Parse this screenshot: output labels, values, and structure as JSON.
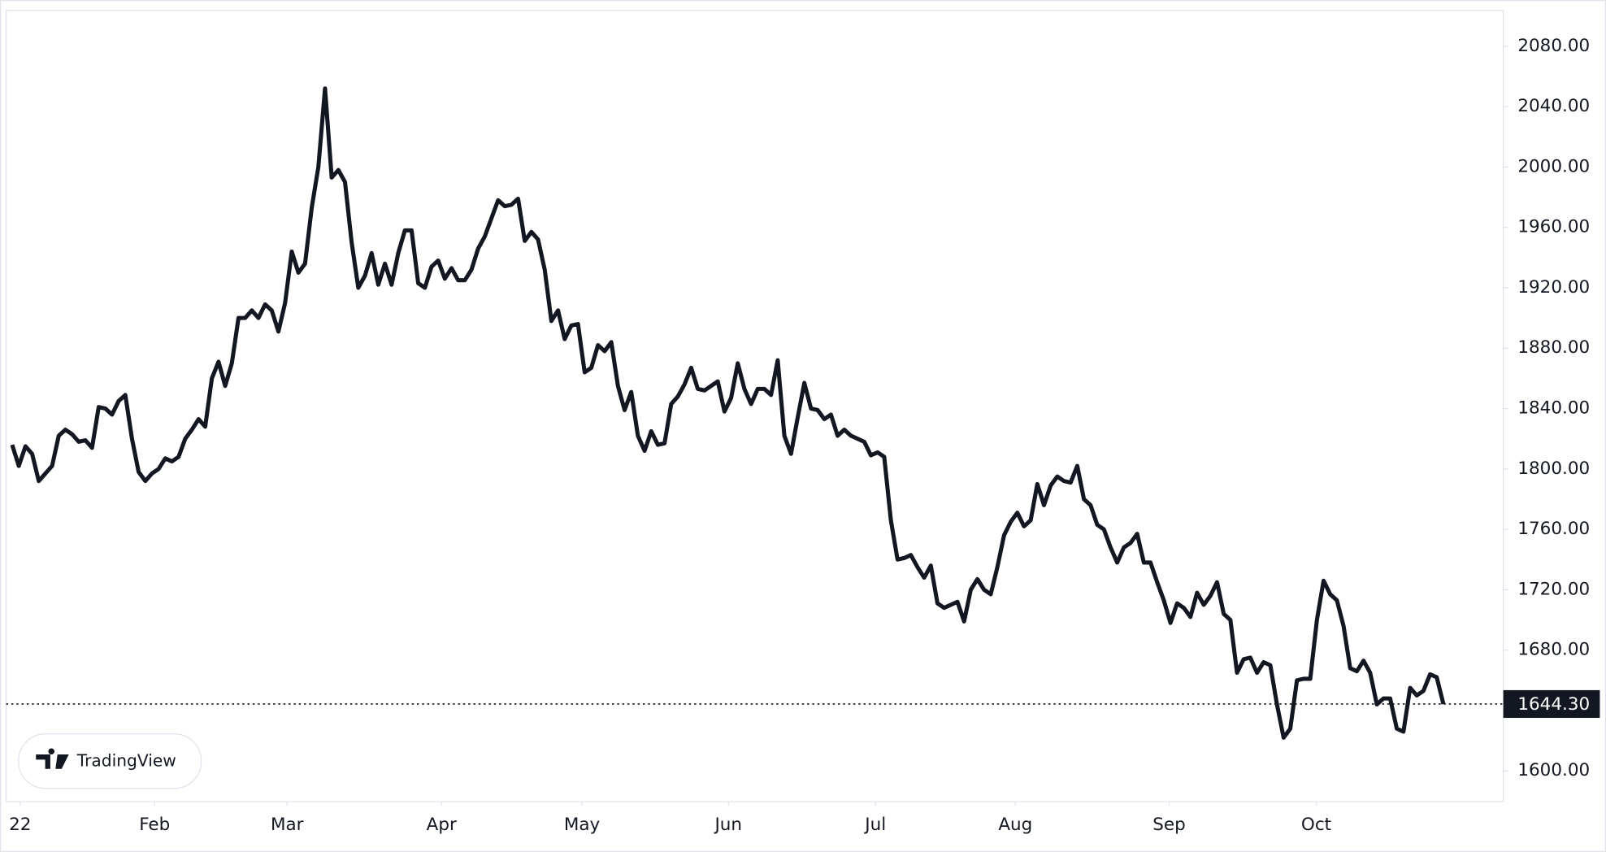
{
  "chart_data": {
    "type": "line",
    "series": [
      {
        "color": "#131722",
        "values": [
          1816,
          1802,
          1815,
          1810,
          1792,
          1797,
          1802,
          1822,
          1826,
          1823,
          1818,
          1819,
          1814,
          1841,
          1840,
          1836,
          1845,
          1849,
          1820,
          1798,
          1792,
          1797,
          1800,
          1807,
          1805,
          1808,
          1820,
          1826,
          1833,
          1828,
          1860,
          1871,
          1855,
          1870,
          1900,
          1900,
          1905,
          1900,
          1909,
          1905,
          1891,
          1910,
          1944,
          1930,
          1936,
          1973,
          2000,
          2052,
          1993,
          1998,
          1990,
          1950,
          1920,
          1928,
          1943,
          1922,
          1936,
          1922,
          1943,
          1958,
          1958,
          1923,
          1920,
          1934,
          1938,
          1926,
          1933,
          1925,
          1925,
          1932,
          1946,
          1954,
          1966,
          1978,
          1974,
          1975,
          1979,
          1951,
          1957,
          1952,
          1932,
          1898,
          1905,
          1886,
          1895,
          1896,
          1864,
          1867,
          1882,
          1878,
          1884,
          1855,
          1839,
          1851,
          1822,
          1812,
          1825,
          1816,
          1817,
          1843,
          1848,
          1856,
          1867,
          1853,
          1852,
          1855,
          1858,
          1838,
          1847,
          1870,
          1853,
          1843,
          1853,
          1853,
          1849,
          1872,
          1822,
          1810,
          1834,
          1857,
          1840,
          1839,
          1833,
          1836,
          1822,
          1826,
          1822,
          1820,
          1818,
          1809,
          1811,
          1808,
          1766,
          1740,
          1741,
          1743,
          1735,
          1728,
          1736,
          1711,
          1708,
          1710,
          1712,
          1699,
          1720,
          1727,
          1720,
          1717,
          1735,
          1756,
          1765,
          1771,
          1762,
          1766,
          1790,
          1776,
          1789,
          1795,
          1792,
          1791,
          1802,
          1780,
          1776,
          1763,
          1760,
          1748,
          1738,
          1748,
          1751,
          1757,
          1738,
          1738,
          1725,
          1713,
          1698,
          1711,
          1708,
          1702,
          1718,
          1710,
          1716,
          1725,
          1704,
          1700,
          1665,
          1674,
          1675,
          1665,
          1672,
          1670,
          1644,
          1622,
          1628,
          1660,
          1661,
          1661,
          1700,
          1726,
          1717,
          1713,
          1696,
          1668,
          1666,
          1673,
          1665,
          1644,
          1648,
          1648,
          1628,
          1626,
          1655,
          1650,
          1653,
          1664,
          1662,
          1644.3
        ]
      }
    ],
    "xlim": [
      -0.9,
      224
    ],
    "xticks": [
      {
        "value": 1.2,
        "label": "22"
      },
      {
        "value": 21.4,
        "label": "Feb"
      },
      {
        "value": 41.3,
        "label": "Mar"
      },
      {
        "value": 64.5,
        "label": "Apr"
      },
      {
        "value": 85.6,
        "label": "May"
      },
      {
        "value": 107.6,
        "label": "Jun"
      },
      {
        "value": 129.7,
        "label": "Jul"
      },
      {
        "value": 150.7,
        "label": "Aug"
      },
      {
        "value": 173.8,
        "label": "Sep"
      },
      {
        "value": 195.9,
        "label": "Oct"
      }
    ],
    "ylim": [
      1579.6,
      2103.8
    ],
    "yticks": [
      {
        "value": 1600,
        "label": "1600.00"
      },
      {
        "value": 1680,
        "label": "1680.00"
      },
      {
        "value": 1720,
        "label": "1720.00"
      },
      {
        "value": 1760,
        "label": "1760.00"
      },
      {
        "value": 1800,
        "label": "1800.00"
      },
      {
        "value": 1840,
        "label": "1840.00"
      },
      {
        "value": 1880,
        "label": "1880.00"
      },
      {
        "value": 1920,
        "label": "1920.00"
      },
      {
        "value": 1960,
        "label": "1960.00"
      },
      {
        "value": 2000,
        "label": "2000.00"
      },
      {
        "value": 2040,
        "label": "2040.00"
      },
      {
        "value": 2080,
        "label": "2080.00"
      }
    ],
    "price_line": {
      "value": 1644.3,
      "label": "1644.30"
    },
    "watermark": "TradingView",
    "grid": false
  }
}
